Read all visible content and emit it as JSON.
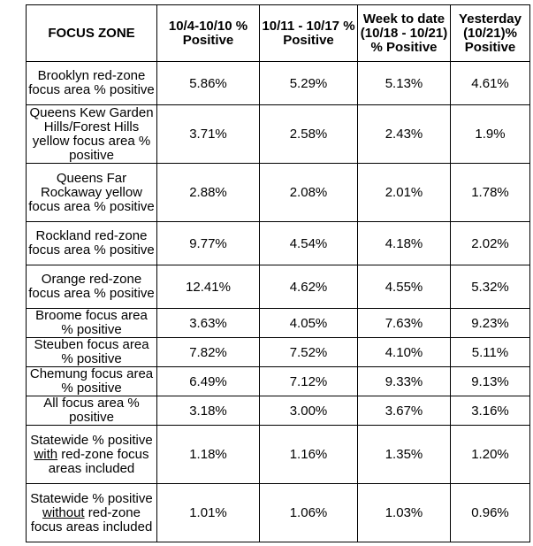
{
  "table": {
    "headers": {
      "zone": "FOCUS ZONE",
      "col1": "10/4-10/10 % Positive",
      "col2": "10/11 - 10/17 % Positive",
      "col3": "Week to date (10/18 - 10/21) % Positive",
      "col4": "Yesterday (10/21)% Positive"
    },
    "rows": [
      {
        "zone": "Brooklyn red-zone focus area % positive",
        "v1": "5.86%",
        "v2": "5.29%",
        "v3": "5.13%",
        "v4": "4.61%"
      },
      {
        "zone": "Queens Kew Garden Hills/Forest Hills yellow focus area % positive",
        "v1": "3.71%",
        "v2": "2.58%",
        "v3": "2.43%",
        "v4": "1.9%"
      },
      {
        "zone": "Queens Far Rockaway  yellow focus area % positive",
        "v1": "2.88%",
        "v2": "2.08%",
        "v3": "2.01%",
        "v4": "1.78%"
      },
      {
        "zone": "Rockland red-zone focus area % positive",
        "v1": "9.77%",
        "v2": "4.54%",
        "v3": "4.18%",
        "v4": "2.02%"
      },
      {
        "zone": "Orange red-zone focus area % positive",
        "v1": "12.41%",
        "v2": "4.62%",
        "v3": "4.55%",
        "v4": "5.32%"
      },
      {
        "zone": "Broome focus area % positive",
        "v1": "3.63%",
        "v2": "4.05%",
        "v3": "7.63%",
        "v4": "9.23%"
      },
      {
        "zone": "Steuben focus area % positive",
        "v1": "7.82%",
        "v2": "7.52%",
        "v3": "4.10%",
        "v4": "5.11%"
      },
      {
        "zone": "Chemung focus area % positive",
        "v1": "6.49%",
        "v2": "7.12%",
        "v3": "9.33%",
        "v4": "9.13%"
      },
      {
        "zone": "All focus area % positive",
        "v1": "3.18%",
        "v2": "3.00%",
        "v3": "3.67%",
        "v4": "3.16%"
      },
      {
        "zone_pre": "Statewide % positive ",
        "zone_u": "with",
        "zone_post": " red-zone focus areas included",
        "v1": "1.18%",
        "v2": "1.16%",
        "v3": "1.35%",
        "v4": "1.20%"
      },
      {
        "zone_pre": "Statewide % positive ",
        "zone_u": "without",
        "zone_post": " red-zone focus areas included",
        "v1": "1.01%",
        "v2": "1.06%",
        "v3": "1.03%",
        "v4": "0.96%"
      }
    ]
  }
}
